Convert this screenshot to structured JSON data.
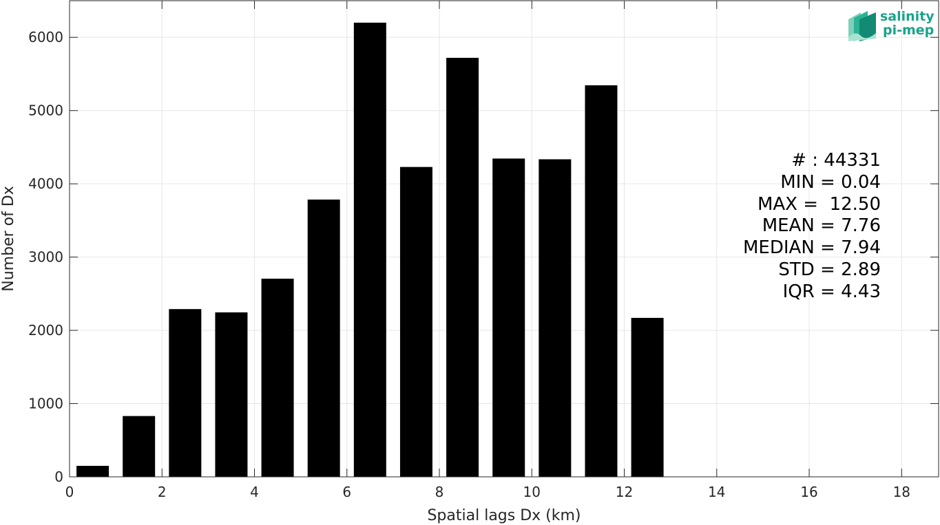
{
  "chart_data": {
    "type": "bar",
    "xlabel": "Spatial lags Dx (km)",
    "ylabel": "Number of Dx",
    "xlim": [
      0,
      18.8
    ],
    "ylim": [
      0,
      6500
    ],
    "xticks": [
      0,
      2,
      4,
      6,
      8,
      10,
      12,
      14,
      16,
      18
    ],
    "yticks": [
      0,
      1000,
      2000,
      3000,
      4000,
      5000,
      6000
    ],
    "bin_width": 1,
    "bar_fraction": 0.7,
    "grid": true,
    "bar_color": "#000000",
    "x": [
      0.5,
      1.5,
      2.5,
      3.5,
      4.5,
      5.5,
      6.5,
      7.5,
      8.5,
      9.5,
      10.5,
      11.5,
      12.5
    ],
    "values": [
      150,
      830,
      2290,
      2245,
      2705,
      3785,
      6200,
      4230,
      5720,
      4345,
      4335,
      5345,
      2170
    ]
  },
  "stats": {
    "count": "# : 44331",
    "min": "MIN = 0.04",
    "max": "MAX =  12.50",
    "mean": "MEAN = 7.76",
    "median": "MEDIAN = 7.94",
    "std": "STD = 2.89",
    "iqr": "IQR = 4.43"
  },
  "logo": {
    "line1": "salinity",
    "line2": "pi-mep",
    "color": "#1aa38a"
  }
}
